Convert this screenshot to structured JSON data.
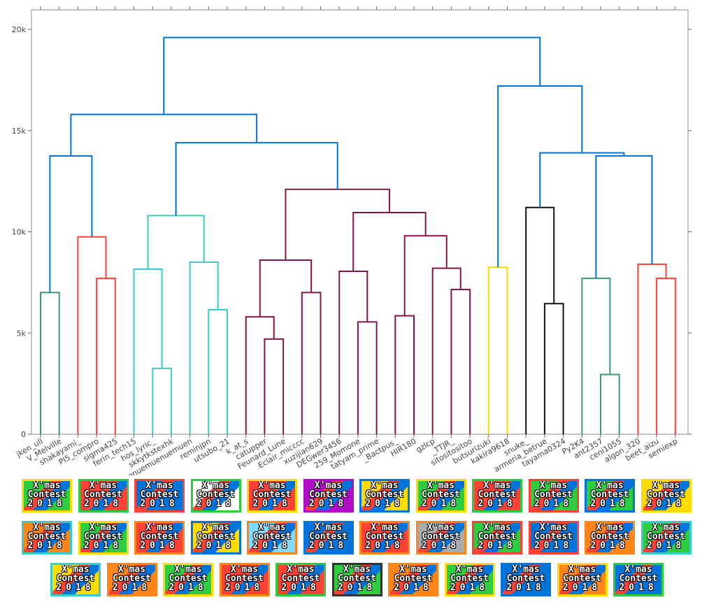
{
  "chart_data": {
    "type": "dendrogram",
    "title": "",
    "xlabel": "",
    "ylabel": "",
    "ylim": [
      0,
      20800
    ],
    "yticks": [
      0,
      5000,
      10000,
      15000,
      20000
    ],
    "ytick_labels": [
      "0",
      "5k",
      "10k",
      "15k",
      "20k"
    ],
    "leaves": [
      "jken_ull",
      "V_Melville",
      "shakayami_",
      "PI5_compro",
      "sigma425",
      "ferin_tech15",
      "hos_lyric_",
      "skkytkstexhk",
      "enuemuenuemuen",
      "reminjpn",
      "utsubo_21",
      "k_at_s",
      "catupper",
      "Feunard_Lune",
      "Eclair_micccc",
      "xuzijian629",
      "DEGwer3456",
      "259_Momone",
      "tatyam_prime",
      "_Bactpus_",
      "HIR180",
      "gzlcp",
      "_TTJR_",
      "sitositositoo",
      "butsurizuki",
      "kakira9618",
      "snuke_",
      "armeria_betrue",
      "tayama0324",
      "Py2K4",
      "ant2357",
      "ceni1055",
      "algon_320",
      "beet_aizu",
      "semiexp"
    ],
    "clusters": [
      {
        "name": "green-1",
        "color": "#3d9970"
      },
      {
        "name": "red-1",
        "color": "#ff4136"
      },
      {
        "name": "cyan",
        "color": "#39cccc"
      },
      {
        "name": "maroon",
        "color": "#85144b"
      },
      {
        "name": "yellow",
        "color": "#ffdc00"
      },
      {
        "name": "black",
        "color": "#111111"
      },
      {
        "name": "green-2",
        "color": "#3d9970"
      },
      {
        "name": "red-2",
        "color": "#ff4136"
      },
      {
        "name": "root-blue",
        "color": "#0074d9"
      }
    ],
    "merges": [
      {
        "a": "jken_ull",
        "b": "V_Melville",
        "h": 7000,
        "color": "#3d9970"
      },
      {
        "a": "PI5_compro",
        "b": "sigma425",
        "h": 7700,
        "color": "#ff4136"
      },
      {
        "a": "shakayami_",
        "b": "m1",
        "h": 9750,
        "color": "#ff4136"
      },
      {
        "a": "m0",
        "b": "m2",
        "h": 13750,
        "color": "#0074d9"
      },
      {
        "a": "hos_lyric_",
        "b": "skkytkstexhk",
        "h": 3250,
        "color": "#39cccc"
      },
      {
        "a": "ferin_tech15",
        "b": "m4",
        "h": 8150,
        "color": "#39cccc"
      },
      {
        "a": "reminjpn",
        "b": "utsubo_21",
        "h": 6150,
        "color": "#39cccc"
      },
      {
        "a": "enuemuenuemuen",
        "b": "m6",
        "h": 8500,
        "color": "#39cccc"
      },
      {
        "a": "m5",
        "b": "m7",
        "h": 10800,
        "color": "#39cccc"
      },
      {
        "a": "catupper",
        "b": "Feunard_Lune",
        "h": 4700,
        "color": "#85144b"
      },
      {
        "a": "k_at_s",
        "b": "m9",
        "h": 5800,
        "color": "#85144b"
      },
      {
        "a": "Eclair_micccc",
        "b": "xuzijian629",
        "h": 7000,
        "color": "#85144b"
      },
      {
        "a": "m10",
        "b": "m11",
        "h": 8600,
        "color": "#85144b"
      },
      {
        "a": "259_Momone",
        "b": "tatyam_prime",
        "h": 5550,
        "color": "#85144b"
      },
      {
        "a": "DEGwer3456",
        "b": "m13",
        "h": 8050,
        "color": "#85144b"
      },
      {
        "a": "_Bactpus_",
        "b": "HIR180",
        "h": 5850,
        "color": "#85144b"
      },
      {
        "a": "_TTJR_",
        "b": "sitositositoo",
        "h": 7150,
        "color": "#85144b"
      },
      {
        "a": "gzlcp",
        "b": "m16",
        "h": 8200,
        "color": "#85144b"
      },
      {
        "a": "m15",
        "b": "m17",
        "h": 9800,
        "color": "#85144b"
      },
      {
        "a": "m14",
        "b": "m18",
        "h": 10950,
        "color": "#85144b"
      },
      {
        "a": "m12",
        "b": "m19",
        "h": 12100,
        "color": "#85144b"
      },
      {
        "a": "m8",
        "b": "m20",
        "h": 14400,
        "color": "#0074d9"
      },
      {
        "a": "m3",
        "b": "m21",
        "h": 15800,
        "color": "#0074d9"
      },
      {
        "a": "butsurizuki",
        "b": "kakira9618",
        "h": 8250,
        "color": "#ffdc00"
      },
      {
        "a": "armeria_betrue",
        "b": "tayama0324",
        "h": 6450,
        "color": "#111111"
      },
      {
        "a": "snuke_",
        "b": "m24",
        "h": 11200,
        "color": "#111111"
      },
      {
        "a": "ant2357",
        "b": "ceni1055",
        "h": 2950,
        "color": "#3d9970"
      },
      {
        "a": "Py2K4",
        "b": "m26",
        "h": 7700,
        "color": "#3d9970"
      },
      {
        "a": "beet_aizu",
        "b": "semiexp",
        "h": 7700,
        "color": "#ff4136"
      },
      {
        "a": "algon_320",
        "b": "m28",
        "h": 8400,
        "color": "#ff4136"
      },
      {
        "a": "m27",
        "b": "m29",
        "h": 13750,
        "color": "#0074d9"
      },
      {
        "a": "m25",
        "b": "m30",
        "h": 13900,
        "color": "#0074d9"
      },
      {
        "a": "m23",
        "b": "m31",
        "h": 17200,
        "color": "#0074d9"
      },
      {
        "a": "m22",
        "b": "m32",
        "h": 19600,
        "color": "#0074d9"
      }
    ]
  },
  "thumbnail_text": {
    "line1": "X'mas",
    "line2": "Contest",
    "line3": "2018"
  },
  "thumbnail_rows": [
    {
      "borders": [
        "#ffdc00",
        "#2ecc40",
        "#ff4136",
        "#2ecc40",
        "#ffdc00",
        "#b10dc9",
        "#0074d9",
        "#ffdc00",
        "#2ecc40",
        "#ff4136",
        "#0074d9",
        "#ffdc00"
      ],
      "fills": [
        "#2ecc40",
        "#ff4136",
        "#0074d9",
        "#ffffff",
        "#ff4136",
        "#b10dc9",
        "#ffdc00",
        "#2ecc40",
        "#ff4136",
        "#2ecc40",
        "#2ecc40",
        "#ffdc00"
      ]
    },
    {
      "borders": [
        "#39cccc",
        "#ffdc00",
        "#ff851b",
        "#0074d9",
        "#ff851b",
        "#0074d9",
        "#ff851b",
        "#ff851b",
        "#ff4136",
        "#ff4136",
        "#ff851b",
        "#39cccc"
      ],
      "fills": [
        "#ff851b",
        "#2ecc40",
        "#ff4136",
        "#ffdc00",
        "#7fdbff",
        "#0074d9",
        "#ff4136",
        "#aaaaaa",
        "#2ecc40",
        "#0074d9",
        "#ff851b",
        "#2ecc40"
      ]
    },
    {
      "borders": [
        "#39cccc",
        "#ff851b",
        "#ffdc00",
        "#ff851b",
        "#2ecc40",
        "#333333",
        "#ff851b",
        "#ffdc00",
        "#0074d9",
        "#ffdc00",
        "#2ecc40"
      ],
      "fills": [
        "#ffdc00",
        "#ff851b",
        "#2ecc40",
        "#ff4136",
        "#ff4136",
        "#2ecc40",
        "#ff851b",
        "#2ecc40",
        "#0074d9",
        "#ff851b",
        "#0074d9"
      ]
    }
  ]
}
